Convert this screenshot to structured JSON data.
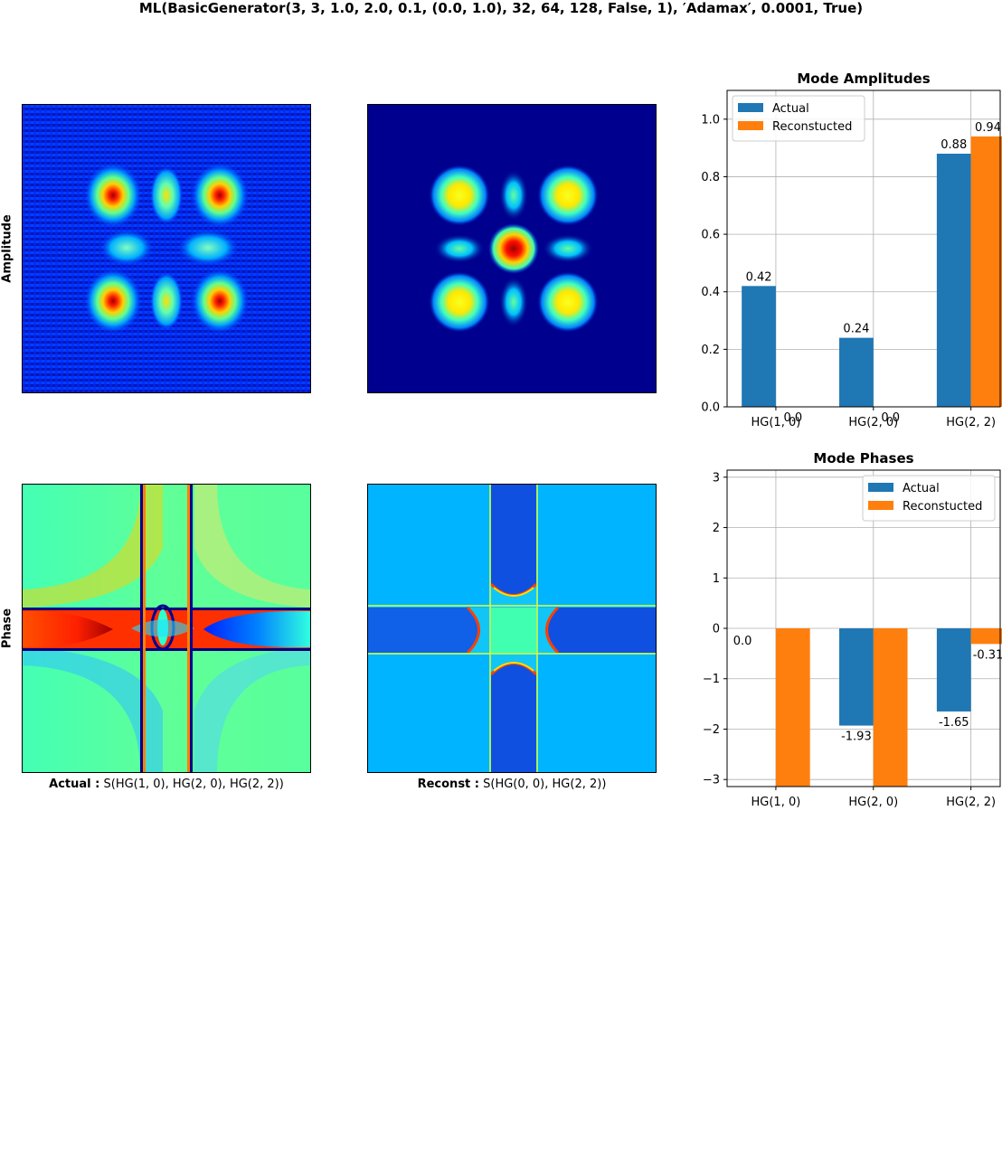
{
  "figure": {
    "suptitle": "ML(BasicGenerator(3, 3, 1.0, 2.0, 0.1, (0.0, 1.0), 32, 64, 128, False, 1), ′Adamax′, 0.0001, True)",
    "row_labels": {
      "amplitude": "Amplitude",
      "phase": "Phase"
    },
    "captions": {
      "actual_label": "Actual :",
      "actual_text": " S(HG(1, 0), HG(2, 0), HG(2, 2))",
      "reconst_label": "Reconst :",
      "reconst_text": " S(HG(0, 0), HG(2, 2))"
    }
  },
  "colors": {
    "actual": "#1f77b4",
    "reconstructed": "#ff7f0e",
    "grid": "#b0b0b0"
  },
  "chart_data": [
    {
      "type": "bar",
      "title": "Mode Amplitudes",
      "categories": [
        "HG(1, 0)",
        "HG(2, 0)",
        "HG(2, 2)"
      ],
      "series": [
        {
          "name": "Actual",
          "values": [
            0.42,
            0.24,
            0.88
          ],
          "labels": [
            "0.42",
            "0.24",
            "0.88"
          ]
        },
        {
          "name": "Reconstucted",
          "values": [
            0.0,
            0.0,
            0.94
          ],
          "labels": [
            "0.0",
            "0.0",
            "0.94"
          ]
        }
      ],
      "ylim": [
        0,
        1.1
      ],
      "yticks": [
        0.0,
        0.2,
        0.4,
        0.6,
        0.8,
        1.0
      ],
      "ytick_labels": [
        "0.0",
        "0.2",
        "0.4",
        "0.6",
        "0.8",
        "1.0"
      ],
      "grid": true,
      "legend": "top-left"
    },
    {
      "type": "bar",
      "title": "Mode Phases",
      "categories": [
        "HG(1, 0)",
        "HG(2, 0)",
        "HG(2, 2)"
      ],
      "series": [
        {
          "name": "Actual",
          "values": [
            0.0,
            -1.93,
            -1.65
          ],
          "labels": [
            "0.0",
            "-1.93",
            "-1.65"
          ]
        },
        {
          "name": "Reconstucted",
          "values": [
            -3.14,
            -3.14,
            -0.31
          ],
          "labels": [
            "",
            "",
            "-0.31"
          ]
        }
      ],
      "ylim": [
        -3.14,
        3.14
      ],
      "yticks": [
        -3,
        -2,
        -1,
        0,
        1,
        2,
        3
      ],
      "ytick_labels": [
        "−3",
        "−2",
        "−1",
        "0",
        "1",
        "2",
        "3"
      ],
      "grid": true,
      "legend": "top-right"
    }
  ]
}
